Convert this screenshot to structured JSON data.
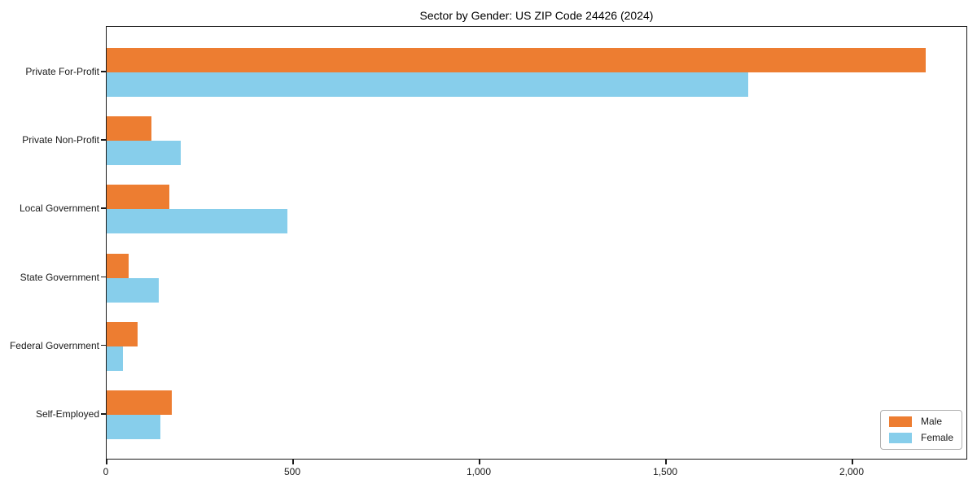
{
  "chart_data": {
    "type": "bar",
    "orientation": "horizontal",
    "title": "Sector by Gender: US ZIP Code 24426 (2024)",
    "categories": [
      "Private For-Profit",
      "Private Non-Profit",
      "Local Government",
      "State Government",
      "Federal Government",
      "Self-Employed"
    ],
    "series": [
      {
        "name": "Male",
        "color": "#ed7d31",
        "values": [
          2196,
          120,
          168,
          59,
          82,
          175
        ]
      },
      {
        "name": "Female",
        "color": "#87ceeb",
        "values": [
          1721,
          199,
          484,
          140,
          44,
          144
        ]
      }
    ],
    "xlabel": "",
    "ylabel": "",
    "xlim": [
      0,
      2310
    ],
    "xticks": [
      0,
      500,
      1000,
      1500,
      2000
    ],
    "xtick_labels": [
      "0",
      "500",
      "1,000",
      "1,500",
      "2,000"
    ],
    "grid": false,
    "legend": {
      "position": "lower right",
      "entries": [
        "Male",
        "Female"
      ]
    },
    "frame": true
  }
}
